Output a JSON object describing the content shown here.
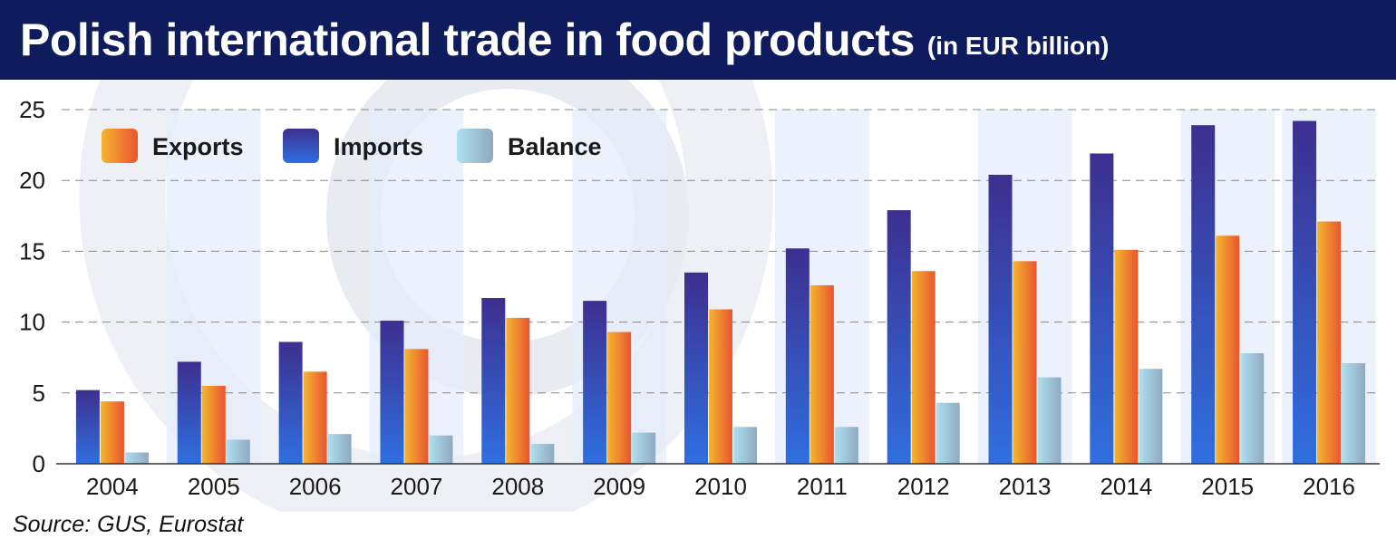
{
  "title": "Polish international trade in food products",
  "subtitle": "(in EUR billion)",
  "source": "Source: GUS, Eurostat",
  "colors": {
    "title_bg": "#0e1b5c",
    "exports": [
      "#f5b531",
      "#e8552f"
    ],
    "imports": [
      "#2f6fe0",
      "#3d2f8f"
    ],
    "balance": [
      "#aee0f0",
      "#8fa9c0"
    ],
    "stripe": "#e6eef9",
    "watermark": "#e3e7ef"
  },
  "chart_data": {
    "type": "bar",
    "categories": [
      "2004",
      "2005",
      "2006",
      "2007",
      "2008",
      "2009",
      "2010",
      "2011",
      "2012",
      "2013",
      "2014",
      "2015",
      "2016"
    ],
    "series": [
      {
        "name": "Imports",
        "values": [
          5.2,
          7.2,
          8.6,
          10.1,
          11.7,
          11.5,
          13.5,
          15.2,
          17.9,
          20.4,
          21.9,
          23.9,
          24.2
        ]
      },
      {
        "name": "Exports",
        "values": [
          4.4,
          5.5,
          6.5,
          8.1,
          10.3,
          9.3,
          10.9,
          12.6,
          13.6,
          14.3,
          15.1,
          16.1,
          17.1
        ]
      },
      {
        "name": "Balance",
        "values": [
          0.8,
          1.7,
          2.1,
          2.0,
          1.4,
          2.2,
          2.6,
          2.6,
          4.3,
          6.1,
          6.7,
          7.8,
          7.1
        ]
      }
    ],
    "legend": [
      "Exports",
      "Imports",
      "Balance"
    ],
    "legend_position": "top-left",
    "yticks": [
      0,
      5,
      10,
      15,
      20,
      25
    ],
    "ylim": [
      0,
      25
    ],
    "grid": "horizontal-dashed",
    "xlabel": "",
    "ylabel": ""
  }
}
